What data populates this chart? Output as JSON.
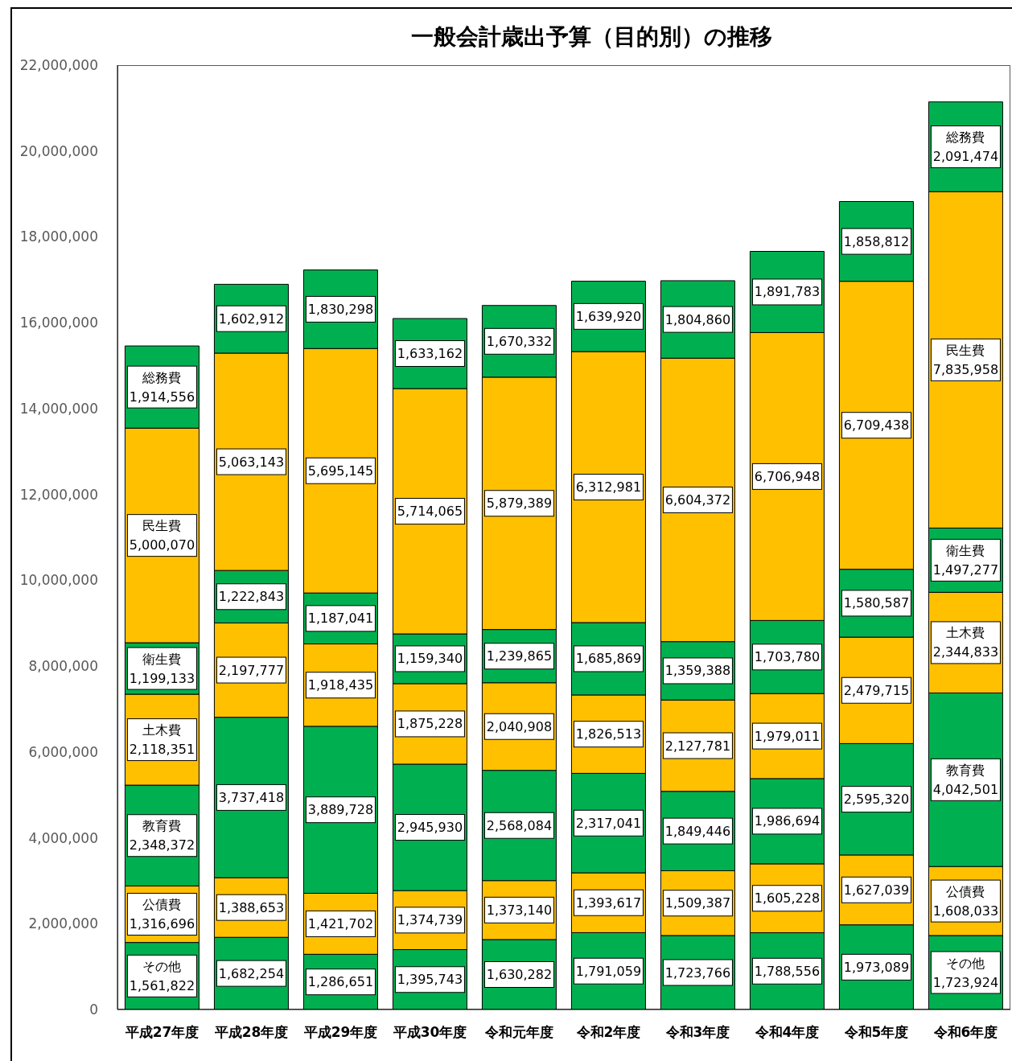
{
  "chart_data": {
    "type": "bar",
    "title": "一般会計歳出予算（目的別）の推移",
    "categories": [
      "平成27年度",
      "平成28年度",
      "平成29年度",
      "平成30年度",
      "令和元年度",
      "令和2年度",
      "令和3年度",
      "令和4年度",
      "令和5年度",
      "令和6年度"
    ],
    "stacked": true,
    "ylim": [
      0,
      22000000
    ],
    "yticks": [
      {
        "value": 0,
        "label": "0"
      },
      {
        "value": 2000000,
        "label": "2,000,000"
      },
      {
        "value": 4000000,
        "label": "4,000,000"
      },
      {
        "value": 6000000,
        "label": "6,000,000"
      },
      {
        "value": 8000000,
        "label": "8,000,000"
      },
      {
        "value": 10000000,
        "label": "10,000,000"
      },
      {
        "value": 12000000,
        "label": "12,000,000"
      },
      {
        "value": 14000000,
        "label": "14,000,000"
      },
      {
        "value": 16000000,
        "label": "16,000,000"
      },
      {
        "value": 18000000,
        "label": "18,000,000"
      },
      {
        "value": 20000000,
        "label": "20,000,000"
      },
      {
        "value": 22000000,
        "label": "22,000,000"
      }
    ],
    "series": [
      {
        "name": "その他",
        "color": "#00b050",
        "values": [
          1561822,
          1682254,
          1286651,
          1395743,
          1630282,
          1791059,
          1723766,
          1788556,
          1973089,
          1723924
        ],
        "value_labels": [
          "1,561,822",
          "1,682,254",
          "1,286,651",
          "1,395,743",
          "1,630,282",
          "1,791,059",
          "1,723,766",
          "1,788,556",
          "1,973,089",
          "1,723,924"
        ]
      },
      {
        "name": "公債費",
        "color": "#ffc000",
        "values": [
          1316696,
          1388653,
          1421702,
          1374739,
          1373140,
          1393617,
          1509387,
          1605228,
          1627039,
          1608033
        ],
        "value_labels": [
          "1,316,696",
          "1,388,653",
          "1,421,702",
          "1,374,739",
          "1,373,140",
          "1,393,617",
          "1,509,387",
          "1,605,228",
          "1,627,039",
          "1,608,033"
        ]
      },
      {
        "name": "教育費",
        "color": "#00b050",
        "values": [
          2348372,
          3737418,
          3889728,
          2945930,
          2568084,
          2317041,
          1849446,
          1986694,
          2595320,
          4042501
        ],
        "value_labels": [
          "2,348,372",
          "3,737,418",
          "3,889,728",
          "2,945,930",
          "2,568,084",
          "2,317,041",
          "1,849,446",
          "1,986,694",
          "2,595,320",
          "4,042,501"
        ]
      },
      {
        "name": "土木費",
        "color": "#ffc000",
        "values": [
          2118351,
          2197777,
          1918435,
          1875228,
          2040908,
          1826513,
          2127781,
          1979011,
          2479715,
          2344833
        ],
        "value_labels": [
          "2,118,351",
          "2,197,777",
          "1,918,435",
          "1,875,228",
          "2,040,908",
          "1,826,513",
          "2,127,781",
          "1,979,011",
          "2,479,715",
          "2,344,833"
        ]
      },
      {
        "name": "衛生費",
        "color": "#00b050",
        "values": [
          1199133,
          1222843,
          1187041,
          1159340,
          1239865,
          1685869,
          1359388,
          1703780,
          1580587,
          1497277
        ],
        "value_labels": [
          "1,199,133",
          "1,222,843",
          "1,187,041",
          "1,159,340",
          "1,239,865",
          "1,685,869",
          "1,359,388",
          "1,703,780",
          "1,580,587",
          "1,497,277"
        ]
      },
      {
        "name": "民生費",
        "color": "#ffc000",
        "values": [
          5000070,
          5063143,
          5695145,
          5714065,
          5879389,
          6312981,
          6604372,
          6706948,
          6709438,
          7835958
        ],
        "value_labels": [
          "5,000,070",
          "5,063,143",
          "5,695,145",
          "5,714,065",
          "5,879,389",
          "6,312,981",
          "6,604,372",
          "6,706,948",
          "6,709,438",
          "7,835,958"
        ]
      },
      {
        "name": "総務費",
        "color": "#00b050",
        "values": [
          1914556,
          1602912,
          1830298,
          1633162,
          1670332,
          1639920,
          1804860,
          1891783,
          1858812,
          2091474
        ],
        "value_labels": [
          "1,914,556",
          "1,602,912",
          "1,830,298",
          "1,633,162",
          "1,670,332",
          "1,639,920",
          "1,804,860",
          "1,891,783",
          "1,858,812",
          "2,091,474"
        ]
      }
    ]
  }
}
